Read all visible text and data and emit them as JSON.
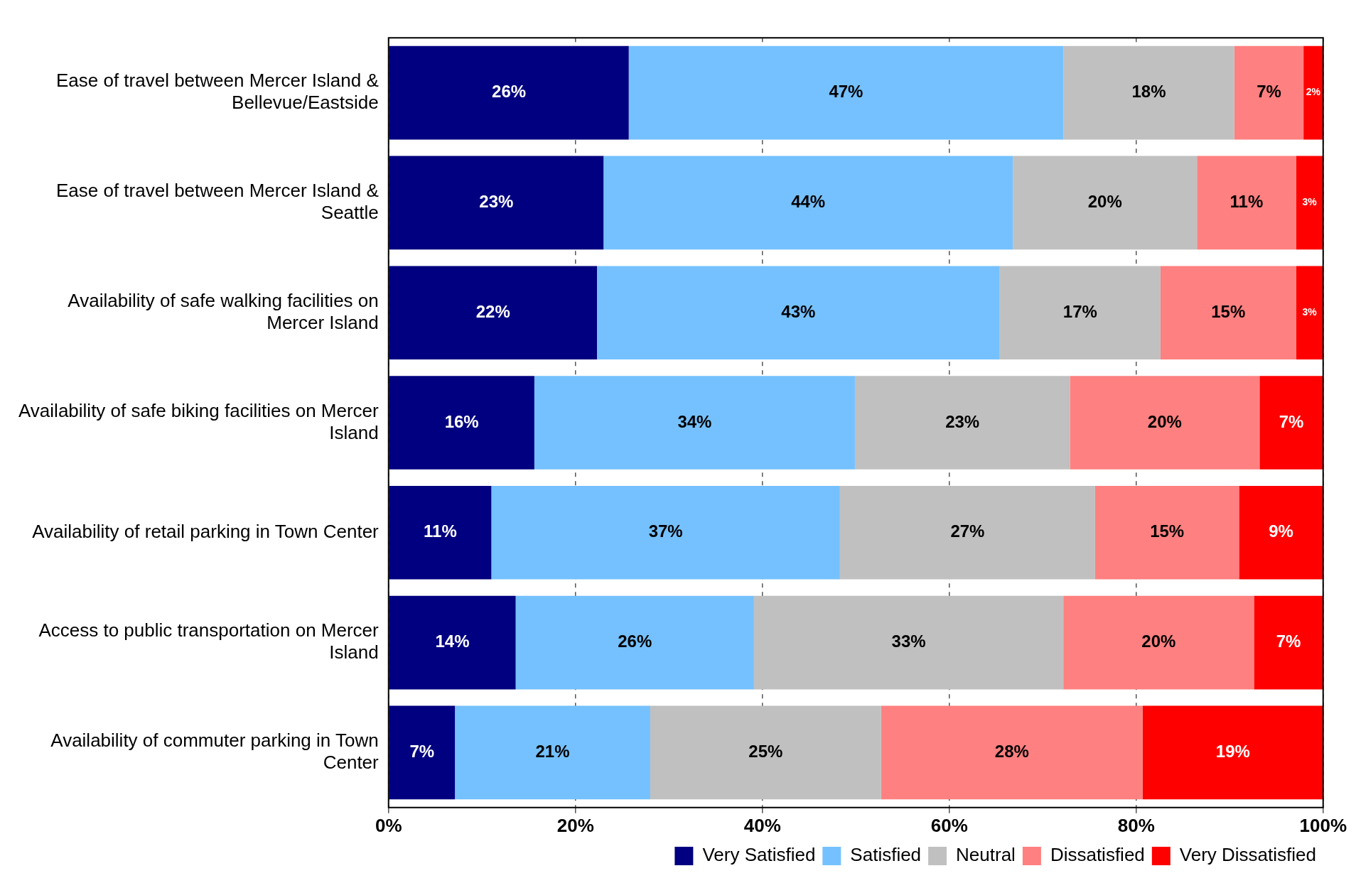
{
  "chart_data": {
    "type": "bar",
    "orientation": "horizontal",
    "stacked": true,
    "categories": [
      "Ease of travel between Mercer Island & Bellevue/Eastside",
      "Ease of travel between Mercer Island & Seattle",
      "Availability of safe walking facilities on Mercer Island",
      "Availability of safe biking facilities on Mercer Island",
      "Availability of retail parking in Town Center",
      "Access to public transportation on Mercer Island",
      "Availability of commuter parking in Town Center"
    ],
    "series": [
      {
        "name": "Very Satisfied",
        "color": "#000080",
        "values": [
          25.7,
          23.0,
          22.3,
          15.6,
          11.0,
          13.6,
          7.1
        ],
        "value_labels": [
          "26%",
          "23%",
          "22%",
          "16%",
          "11%",
          "14%",
          "7%"
        ]
      },
      {
        "name": "Satisfied",
        "color": "#75c1ff",
        "values": [
          46.5,
          43.8,
          43.1,
          34.3,
          37.3,
          25.5,
          20.9
        ],
        "value_labels": [
          "47%",
          "44%",
          "43%",
          "34%",
          "37%",
          "26%",
          "21%"
        ]
      },
      {
        "name": "Neutral",
        "color": "#c0c0c0",
        "values": [
          18.3,
          19.7,
          17.2,
          23.0,
          27.3,
          33.1,
          24.7
        ],
        "value_labels": [
          "18%",
          "20%",
          "17%",
          "23%",
          "27%",
          "33%",
          "25%"
        ]
      },
      {
        "name": "Dissatisfied",
        "color": "#ff8080",
        "values": [
          7.4,
          10.6,
          14.5,
          20.3,
          15.4,
          20.4,
          28.0
        ],
        "value_labels": [
          "7%",
          "11%",
          "15%",
          "20%",
          "15%",
          "20%",
          "28%"
        ]
      },
      {
        "name": "Very Dissatisfied",
        "color": "#ff0000",
        "values": [
          2.1,
          2.9,
          2.9,
          6.8,
          9.0,
          7.4,
          19.3
        ],
        "value_labels": [
          "2%",
          "3%",
          "3%",
          "7%",
          "9%",
          "7%",
          "19%"
        ]
      }
    ],
    "xlim": [
      0,
      100
    ],
    "xticks": [
      {
        "value": 0,
        "label": "0%"
      },
      {
        "value": 20,
        "label": "20%"
      },
      {
        "value": 40,
        "label": "40%"
      },
      {
        "value": 60,
        "label": "60%"
      },
      {
        "value": 80,
        "label": "80%"
      },
      {
        "value": 100,
        "label": "100%"
      }
    ],
    "grid": "x",
    "legend": "bottom"
  }
}
